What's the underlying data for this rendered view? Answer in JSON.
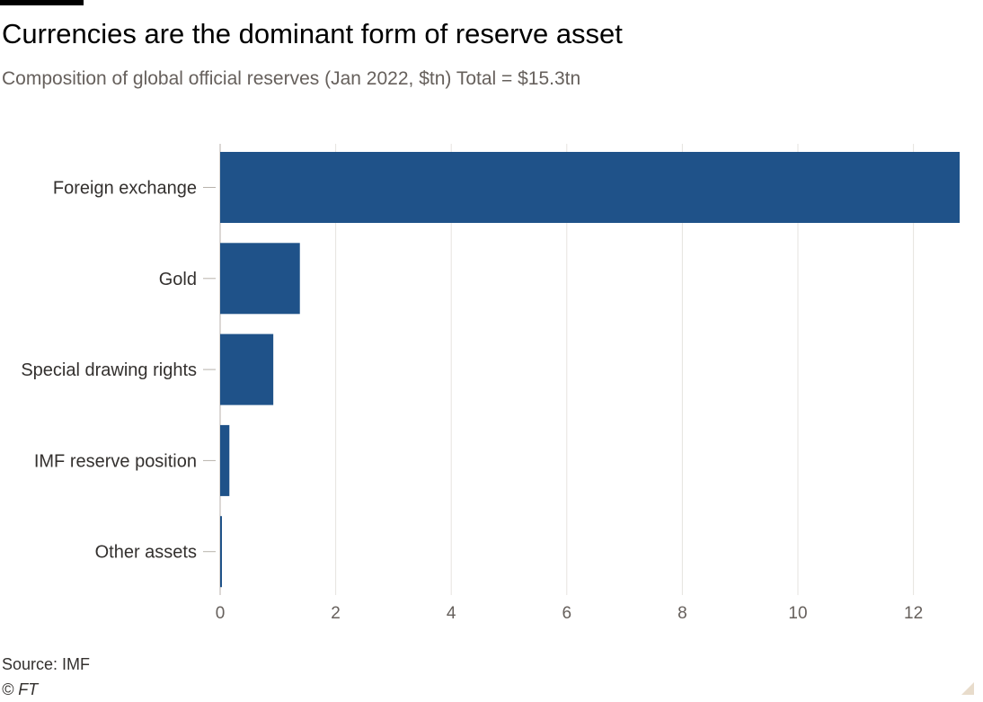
{
  "header": {
    "title": "Currencies are the dominant form of reserve asset",
    "subtitle": "Composition of global official reserves (Jan 2022, $tn) Total = $15.3tn"
  },
  "footer": {
    "source": "Source: IMF",
    "copyright": "© FT"
  },
  "colors": {
    "bar": "#1f5289",
    "grid": "#e6e3df",
    "axis_text": "#66605c",
    "label_text": "#33302e"
  },
  "chart_data": {
    "type": "bar",
    "orientation": "horizontal",
    "title": "Currencies are the dominant form of reserve asset",
    "subtitle": "Composition of global official reserves (Jan 2022, $tn) Total = $15.3tn",
    "categories": [
      "Foreign exchange",
      "Gold",
      "Special drawing rights",
      "IMF reserve position",
      "Other assets"
    ],
    "values": [
      12.8,
      1.38,
      0.92,
      0.16,
      0.03
    ],
    "x_ticks": [
      0,
      2,
      4,
      6,
      8,
      10,
      12
    ],
    "xlim": [
      0,
      13
    ],
    "xlabel": "",
    "ylabel": "",
    "grid": true,
    "legend": "none"
  }
}
